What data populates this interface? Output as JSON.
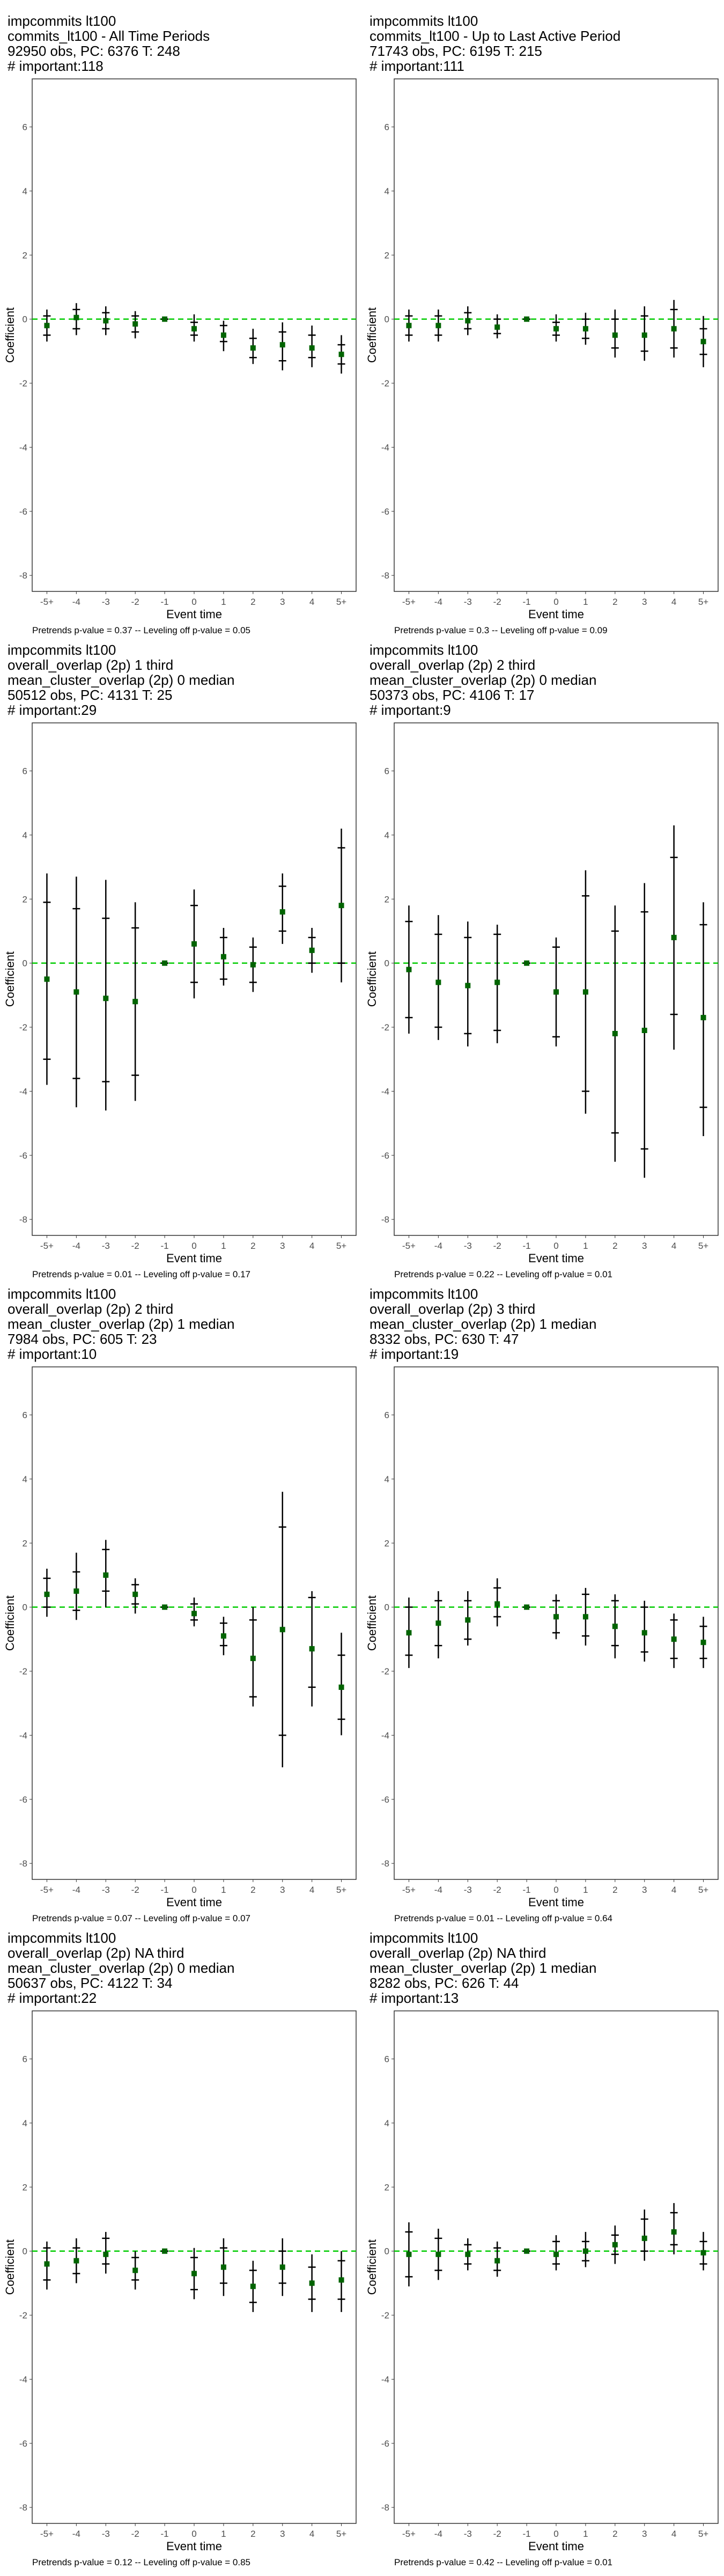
{
  "chart_data": [
    {
      "type": "scatter",
      "title_lines": [
        "impcommits lt100",
        "commits_lt100 - All Time Periods",
        "92950 obs, PC: 6376 T: 248",
        "# important:118"
      ],
      "xlabel": "Event time",
      "ylabel": "Coefficient",
      "categories": [
        "-5+",
        "-4",
        "-3",
        "-2",
        "-1",
        "0",
        "1",
        "2",
        "3",
        "4",
        "5+"
      ],
      "ylim": [
        -8.5,
        7.5
      ],
      "yticks": [
        -8,
        -6,
        -4,
        -2,
        0,
        2,
        4,
        6
      ],
      "series": [
        {
          "values": [
            -0.2,
            0.05,
            -0.05,
            -0.15,
            0,
            -0.3,
            -0.5,
            -0.9,
            -0.8,
            -0.9,
            -1.1
          ],
          "ci_low": [
            -0.7,
            -0.5,
            -0.5,
            -0.6,
            0,
            -0.7,
            -1.0,
            -1.4,
            -1.6,
            -1.5,
            -1.7
          ],
          "ci_high": [
            0.3,
            0.5,
            0.4,
            0.25,
            0,
            0.15,
            -0.05,
            -0.3,
            -0.1,
            -0.2,
            -0.5
          ],
          "bar_low": [
            -0.5,
            -0.3,
            -0.3,
            -0.4,
            0,
            -0.5,
            -0.7,
            -1.2,
            -1.3,
            -1.2,
            -1.4
          ],
          "bar_high": [
            0.1,
            0.3,
            0.2,
            0.1,
            0,
            -0.1,
            -0.2,
            -0.6,
            -0.4,
            -0.5,
            -0.8
          ]
        }
      ],
      "reference_line": 0,
      "footnote": "Pretrends p-value = 0.37 -- Leveling off p-value = 0.05"
    },
    {
      "type": "scatter",
      "title_lines": [
        "impcommits lt100",
        "commits_lt100 - Up to Last Active Period",
        "71743 obs, PC: 6195 T: 215",
        "# important:111"
      ],
      "xlabel": "Event time",
      "ylabel": "Coefficient",
      "categories": [
        "-5+",
        "-4",
        "-3",
        "-2",
        "-1",
        "0",
        "1",
        "2",
        "3",
        "4",
        "5+"
      ],
      "ylim": [
        -8.5,
        7.5
      ],
      "yticks": [
        -8,
        -6,
        -4,
        -2,
        0,
        2,
        4,
        6
      ],
      "series": [
        {
          "values": [
            -0.2,
            -0.2,
            -0.05,
            -0.25,
            0,
            -0.3,
            -0.3,
            -0.5,
            -0.5,
            -0.3,
            -0.7
          ],
          "ci_low": [
            -0.7,
            -0.7,
            -0.5,
            -0.6,
            0,
            -0.7,
            -0.8,
            -1.2,
            -1.3,
            -1.2,
            -1.5
          ],
          "ci_high": [
            0.3,
            0.3,
            0.4,
            0.15,
            0,
            0.15,
            0.2,
            0.3,
            0.4,
            0.6,
            0.1
          ],
          "bar_low": [
            -0.5,
            -0.5,
            -0.3,
            -0.45,
            0,
            -0.5,
            -0.6,
            -0.9,
            -1.0,
            -0.9,
            -1.1
          ],
          "bar_high": [
            0.1,
            0.1,
            0.2,
            0.0,
            0,
            -0.1,
            0.0,
            0.0,
            0.1,
            0.3,
            -0.3
          ]
        }
      ],
      "reference_line": 0,
      "footnote": "Pretrends p-value = 0.3 -- Leveling off p-value = 0.09"
    },
    {
      "type": "scatter",
      "title_lines": [
        "impcommits lt100",
        "overall_overlap (2p) 1 third",
        "mean_cluster_overlap (2p) 0 median",
        "50512 obs, PC: 4131 T: 25",
        "# important:29"
      ],
      "xlabel": "Event time",
      "ylabel": "Coefficient",
      "categories": [
        "-5+",
        "-4",
        "-3",
        "-2",
        "-1",
        "0",
        "1",
        "2",
        "3",
        "4",
        "5+"
      ],
      "ylim": [
        -8.5,
        7.5
      ],
      "yticks": [
        -8,
        -6,
        -4,
        -2,
        0,
        2,
        4,
        6
      ],
      "series": [
        {
          "values": [
            -0.5,
            -0.9,
            -1.1,
            -1.2,
            0,
            0.6,
            0.2,
            -0.05,
            1.6,
            0.4,
            1.8
          ],
          "ci_low": [
            -3.8,
            -4.5,
            -4.6,
            -4.3,
            0,
            -1.1,
            -0.7,
            -0.9,
            0.6,
            -0.3,
            -0.6
          ],
          "ci_high": [
            2.8,
            2.7,
            2.6,
            1.9,
            0,
            2.3,
            1.1,
            0.8,
            2.8,
            1.1,
            4.2
          ],
          "bar_low": [
            -3.0,
            -3.6,
            -3.7,
            -3.5,
            0,
            -0.6,
            -0.5,
            -0.6,
            1.0,
            0.0,
            0.0
          ],
          "bar_high": [
            1.9,
            1.7,
            1.4,
            1.1,
            0,
            1.8,
            0.8,
            0.5,
            2.4,
            0.8,
            3.6
          ]
        }
      ],
      "reference_line": 0,
      "footnote": "Pretrends p-value = 0.01 -- Leveling off p-value = 0.17"
    },
    {
      "type": "scatter",
      "title_lines": [
        "impcommits lt100",
        "overall_overlap (2p) 2 third",
        "mean_cluster_overlap (2p) 0 median",
        "50373 obs, PC: 4106 T: 17",
        "# important:9"
      ],
      "xlabel": "Event time",
      "ylabel": "Coefficient",
      "categories": [
        "-5+",
        "-4",
        "-3",
        "-2",
        "-1",
        "0",
        "1",
        "2",
        "3",
        "4",
        "5+"
      ],
      "ylim": [
        -8.5,
        7.5
      ],
      "yticks": [
        -8,
        -6,
        -4,
        -2,
        0,
        2,
        4,
        6
      ],
      "series": [
        {
          "values": [
            -0.2,
            -0.6,
            -0.7,
            -0.6,
            0,
            -0.9,
            -0.9,
            -2.2,
            -2.1,
            0.8,
            -1.7
          ],
          "ci_low": [
            -2.2,
            -2.4,
            -2.6,
            -2.5,
            0,
            -2.6,
            -4.7,
            -6.2,
            -6.7,
            -2.7,
            -5.4
          ],
          "ci_high": [
            1.8,
            1.5,
            1.3,
            1.2,
            0,
            0.8,
            2.9,
            1.8,
            2.5,
            4.3,
            1.9
          ],
          "bar_low": [
            -1.7,
            -2.0,
            -2.2,
            -2.1,
            0,
            -2.3,
            -4.0,
            -5.3,
            -5.8,
            -1.6,
            -4.5
          ],
          "bar_high": [
            1.3,
            0.9,
            0.8,
            0.9,
            0,
            0.5,
            2.1,
            1.0,
            1.6,
            3.3,
            1.2
          ]
        }
      ],
      "reference_line": 0,
      "footnote": "Pretrends p-value = 0.22 -- Leveling off p-value = 0.01"
    },
    {
      "type": "scatter",
      "title_lines": [
        "impcommits lt100",
        "overall_overlap (2p) 2 third",
        "mean_cluster_overlap (2p) 1 median",
        "7984 obs, PC: 605 T: 23",
        "# important:10"
      ],
      "xlabel": "Event time",
      "ylabel": "Coefficient",
      "categories": [
        "-5+",
        "-4",
        "-3",
        "-2",
        "-1",
        "0",
        "1",
        "2",
        "3",
        "4",
        "5+"
      ],
      "ylim": [
        -8.5,
        7.5
      ],
      "yticks": [
        -8,
        -6,
        -4,
        -2,
        0,
        2,
        4,
        6
      ],
      "series": [
        {
          "values": [
            0.4,
            0.5,
            1.0,
            0.4,
            0,
            -0.2,
            -0.9,
            -1.6,
            -0.7,
            -1.3,
            -2.5
          ],
          "ci_low": [
            -0.3,
            -0.4,
            0.0,
            -0.2,
            0,
            -0.6,
            -1.5,
            -3.1,
            -5.0,
            -3.1,
            -4.0
          ],
          "ci_high": [
            1.2,
            1.7,
            2.1,
            0.9,
            0,
            0.3,
            -0.3,
            0.0,
            3.6,
            0.5,
            -0.8
          ],
          "bar_low": [
            0.0,
            -0.1,
            0.5,
            0.1,
            0,
            -0.4,
            -1.2,
            -2.8,
            -4.0,
            -2.5,
            -3.5
          ],
          "bar_high": [
            0.9,
            1.1,
            1.8,
            0.7,
            0,
            0.1,
            -0.5,
            -0.4,
            2.5,
            0.3,
            -1.5
          ]
        }
      ],
      "reference_line": 0,
      "footnote": "Pretrends p-value = 0.07 -- Leveling off p-value = 0.07"
    },
    {
      "type": "scatter",
      "title_lines": [
        "impcommits lt100",
        "overall_overlap (2p) 3 third",
        "mean_cluster_overlap (2p) 1 median",
        "8332 obs, PC: 630 T: 47",
        "# important:19"
      ],
      "xlabel": "Event time",
      "ylabel": "Coefficient",
      "categories": [
        "-5+",
        "-4",
        "-3",
        "-2",
        "-1",
        "0",
        "1",
        "2",
        "3",
        "4",
        "5+"
      ],
      "ylim": [
        -8.5,
        7.5
      ],
      "yticks": [
        -8,
        -6,
        -4,
        -2,
        0,
        2,
        4,
        6
      ],
      "series": [
        {
          "values": [
            -0.8,
            -0.5,
            -0.4,
            0.1,
            0,
            -0.3,
            -0.3,
            -0.6,
            -0.8,
            -1.0,
            -1.1
          ],
          "ci_low": [
            -1.9,
            -1.6,
            -1.2,
            -0.6,
            0,
            -1.0,
            -1.2,
            -1.6,
            -1.7,
            -1.9,
            -1.9
          ],
          "ci_high": [
            0.3,
            0.5,
            0.5,
            0.9,
            0,
            0.4,
            0.6,
            0.4,
            0.2,
            -0.2,
            -0.3
          ],
          "bar_low": [
            -1.5,
            -1.2,
            -1.0,
            -0.3,
            0,
            -0.8,
            -0.9,
            -1.2,
            -1.4,
            -1.6,
            -1.6
          ],
          "bar_high": [
            0.0,
            0.2,
            0.2,
            0.6,
            0,
            0.2,
            0.4,
            0.2,
            0.0,
            -0.4,
            -0.6
          ]
        }
      ],
      "reference_line": 0,
      "footnote": "Pretrends p-value = 0.01 -- Leveling off p-value = 0.64"
    },
    {
      "type": "scatter",
      "title_lines": [
        "impcommits lt100",
        "overall_overlap (2p) NA third",
        "mean_cluster_overlap (2p) 0 median",
        "50637 obs, PC: 4122 T: 34",
        "# important:22"
      ],
      "xlabel": "Event time",
      "ylabel": "Coefficient",
      "categories": [
        "-5+",
        "-4",
        "-3",
        "-2",
        "-1",
        "0",
        "1",
        "2",
        "3",
        "4",
        "5+"
      ],
      "ylim": [
        -8.5,
        7.5
      ],
      "yticks": [
        -8,
        -6,
        -4,
        -2,
        0,
        2,
        4,
        6
      ],
      "series": [
        {
          "values": [
            -0.4,
            -0.3,
            -0.1,
            -0.6,
            0,
            -0.7,
            -0.5,
            -1.1,
            -0.5,
            -1.0,
            -0.9
          ],
          "ci_low": [
            -1.2,
            -1.0,
            -0.7,
            -1.2,
            0,
            -1.5,
            -1.4,
            -1.9,
            -1.4,
            -1.9,
            -1.9
          ],
          "ci_high": [
            0.3,
            0.4,
            0.6,
            0.0,
            0,
            0.1,
            0.4,
            -0.3,
            0.4,
            -0.1,
            0.0
          ],
          "bar_low": [
            -0.9,
            -0.7,
            -0.4,
            -0.9,
            0,
            -1.2,
            -1.0,
            -1.6,
            -1.0,
            -1.5,
            -1.5
          ],
          "bar_high": [
            0.1,
            0.1,
            0.4,
            -0.2,
            0,
            -0.2,
            0.1,
            -0.6,
            0.0,
            -0.5,
            -0.3
          ]
        }
      ],
      "reference_line": 0,
      "footnote": "Pretrends p-value = 0.12 -- Leveling off p-value = 0.85"
    },
    {
      "type": "scatter",
      "title_lines": [
        "impcommits lt100",
        "overall_overlap (2p) NA third",
        "mean_cluster_overlap (2p) 1 median",
        "8282 obs, PC: 626 T: 44",
        "# important:13"
      ],
      "xlabel": "Event time",
      "ylabel": "Coefficient",
      "categories": [
        "-5+",
        "-4",
        "-3",
        "-2",
        "-1",
        "0",
        "1",
        "2",
        "3",
        "4",
        "5+"
      ],
      "ylim": [
        -8.5,
        7.5
      ],
      "yticks": [
        -8,
        -6,
        -4,
        -2,
        0,
        2,
        4,
        6
      ],
      "series": [
        {
          "values": [
            -0.1,
            -0.1,
            -0.1,
            -0.3,
            0,
            -0.1,
            0.0,
            0.2,
            0.4,
            0.6,
            -0.05
          ],
          "ci_low": [
            -1.1,
            -0.9,
            -0.6,
            -0.8,
            0,
            -0.6,
            -0.5,
            -0.4,
            -0.3,
            -0.1,
            -0.6
          ],
          "ci_high": [
            0.9,
            0.7,
            0.4,
            0.3,
            0,
            0.5,
            0.6,
            0.8,
            1.3,
            1.5,
            0.6
          ],
          "bar_low": [
            -0.8,
            -0.6,
            -0.4,
            -0.6,
            0,
            -0.4,
            -0.3,
            -0.1,
            0.0,
            0.2,
            -0.4
          ],
          "bar_high": [
            0.6,
            0.4,
            0.2,
            0.1,
            0,
            0.3,
            0.3,
            0.5,
            1.0,
            1.2,
            0.3
          ]
        }
      ],
      "reference_line": 0,
      "footnote": "Pretrends p-value = 0.42 -- Leveling off p-value = 0.01"
    }
  ],
  "colors": {
    "point": "#006400",
    "error_bar": "#000000",
    "reference_line": "#00cc00",
    "panel_border": "#333333",
    "tick_label": "#4d4d4d"
  }
}
